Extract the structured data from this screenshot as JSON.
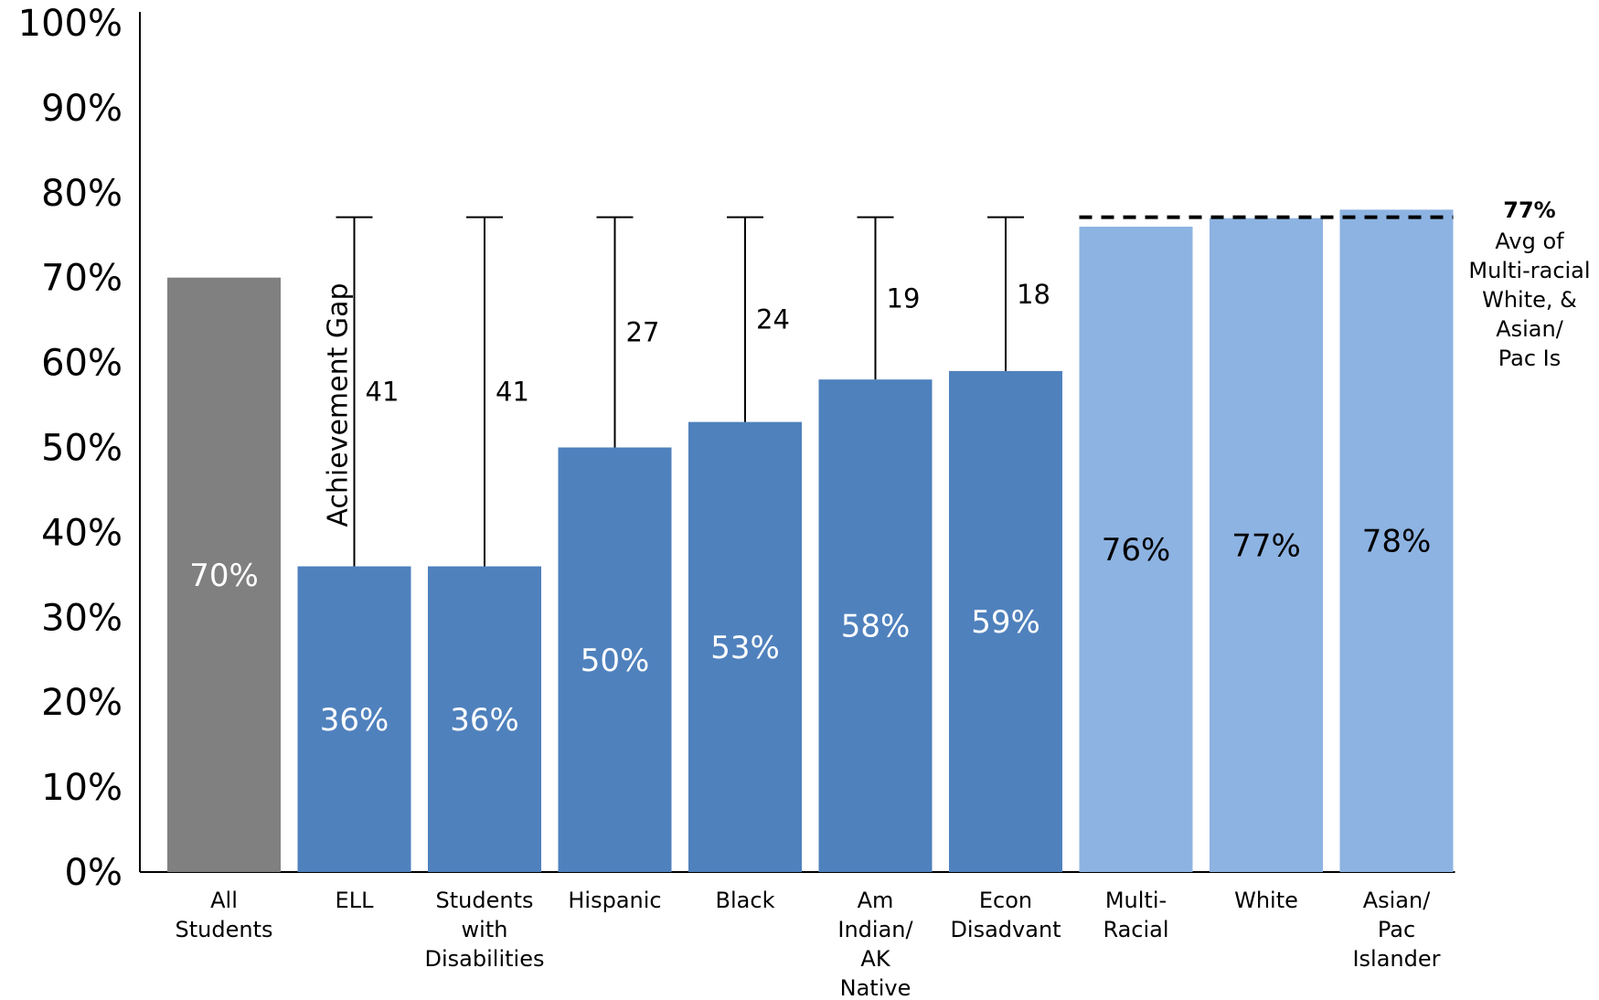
{
  "chart_data": {
    "type": "bar",
    "categories": [
      [
        "All",
        "Students"
      ],
      [
        "ELL"
      ],
      [
        "Students",
        "with",
        "Disabilities"
      ],
      [
        "Hispanic"
      ],
      [
        "Black"
      ],
      [
        "Am",
        "Indian/",
        "AK",
        "Native"
      ],
      [
        "Econ",
        "Disadvant"
      ],
      [
        "Multi-",
        "Racial"
      ],
      [
        "White"
      ],
      [
        "Asian/",
        "Pac",
        "Islander"
      ]
    ],
    "values": [
      70,
      36,
      36,
      50,
      53,
      58,
      59,
      76,
      77,
      78
    ],
    "value_labels": [
      "70%",
      "36%",
      "36%",
      "50%",
      "53%",
      "58%",
      "59%",
      "76%",
      "77%",
      "78%"
    ],
    "bar_colors": [
      "#808080",
      "#4f81bd",
      "#4f81bd",
      "#4f81bd",
      "#4f81bd",
      "#4f81bd",
      "#4f81bd",
      "#8db3e2",
      "#8db3e2",
      "#8db3e2"
    ],
    "value_label_colors": [
      "#ffffff",
      "#ffffff",
      "#ffffff",
      "#ffffff",
      "#ffffff",
      "#ffffff",
      "#ffffff",
      "#000000",
      "#000000",
      "#000000"
    ],
    "ylim": [
      0,
      100
    ],
    "yticks": [
      "0%",
      "10%",
      "20%",
      "30%",
      "40%",
      "50%",
      "60%",
      "70%",
      "80%",
      "90%",
      "100%"
    ],
    "yticks_values": [
      0,
      10,
      20,
      30,
      40,
      50,
      60,
      70,
      80,
      90,
      100
    ],
    "reference_line": {
      "value": 77,
      "style": "dashed",
      "label_value": "77%",
      "label_lines": [
        "Avg of",
        "Multi-racial",
        "White, &",
        "Asian/",
        "Pac Is"
      ]
    },
    "achievement_gap": {
      "title": "Achievement Gap",
      "gaps": [
        null,
        41,
        41,
        27,
        24,
        19,
        18,
        null,
        null,
        null
      ]
    }
  }
}
